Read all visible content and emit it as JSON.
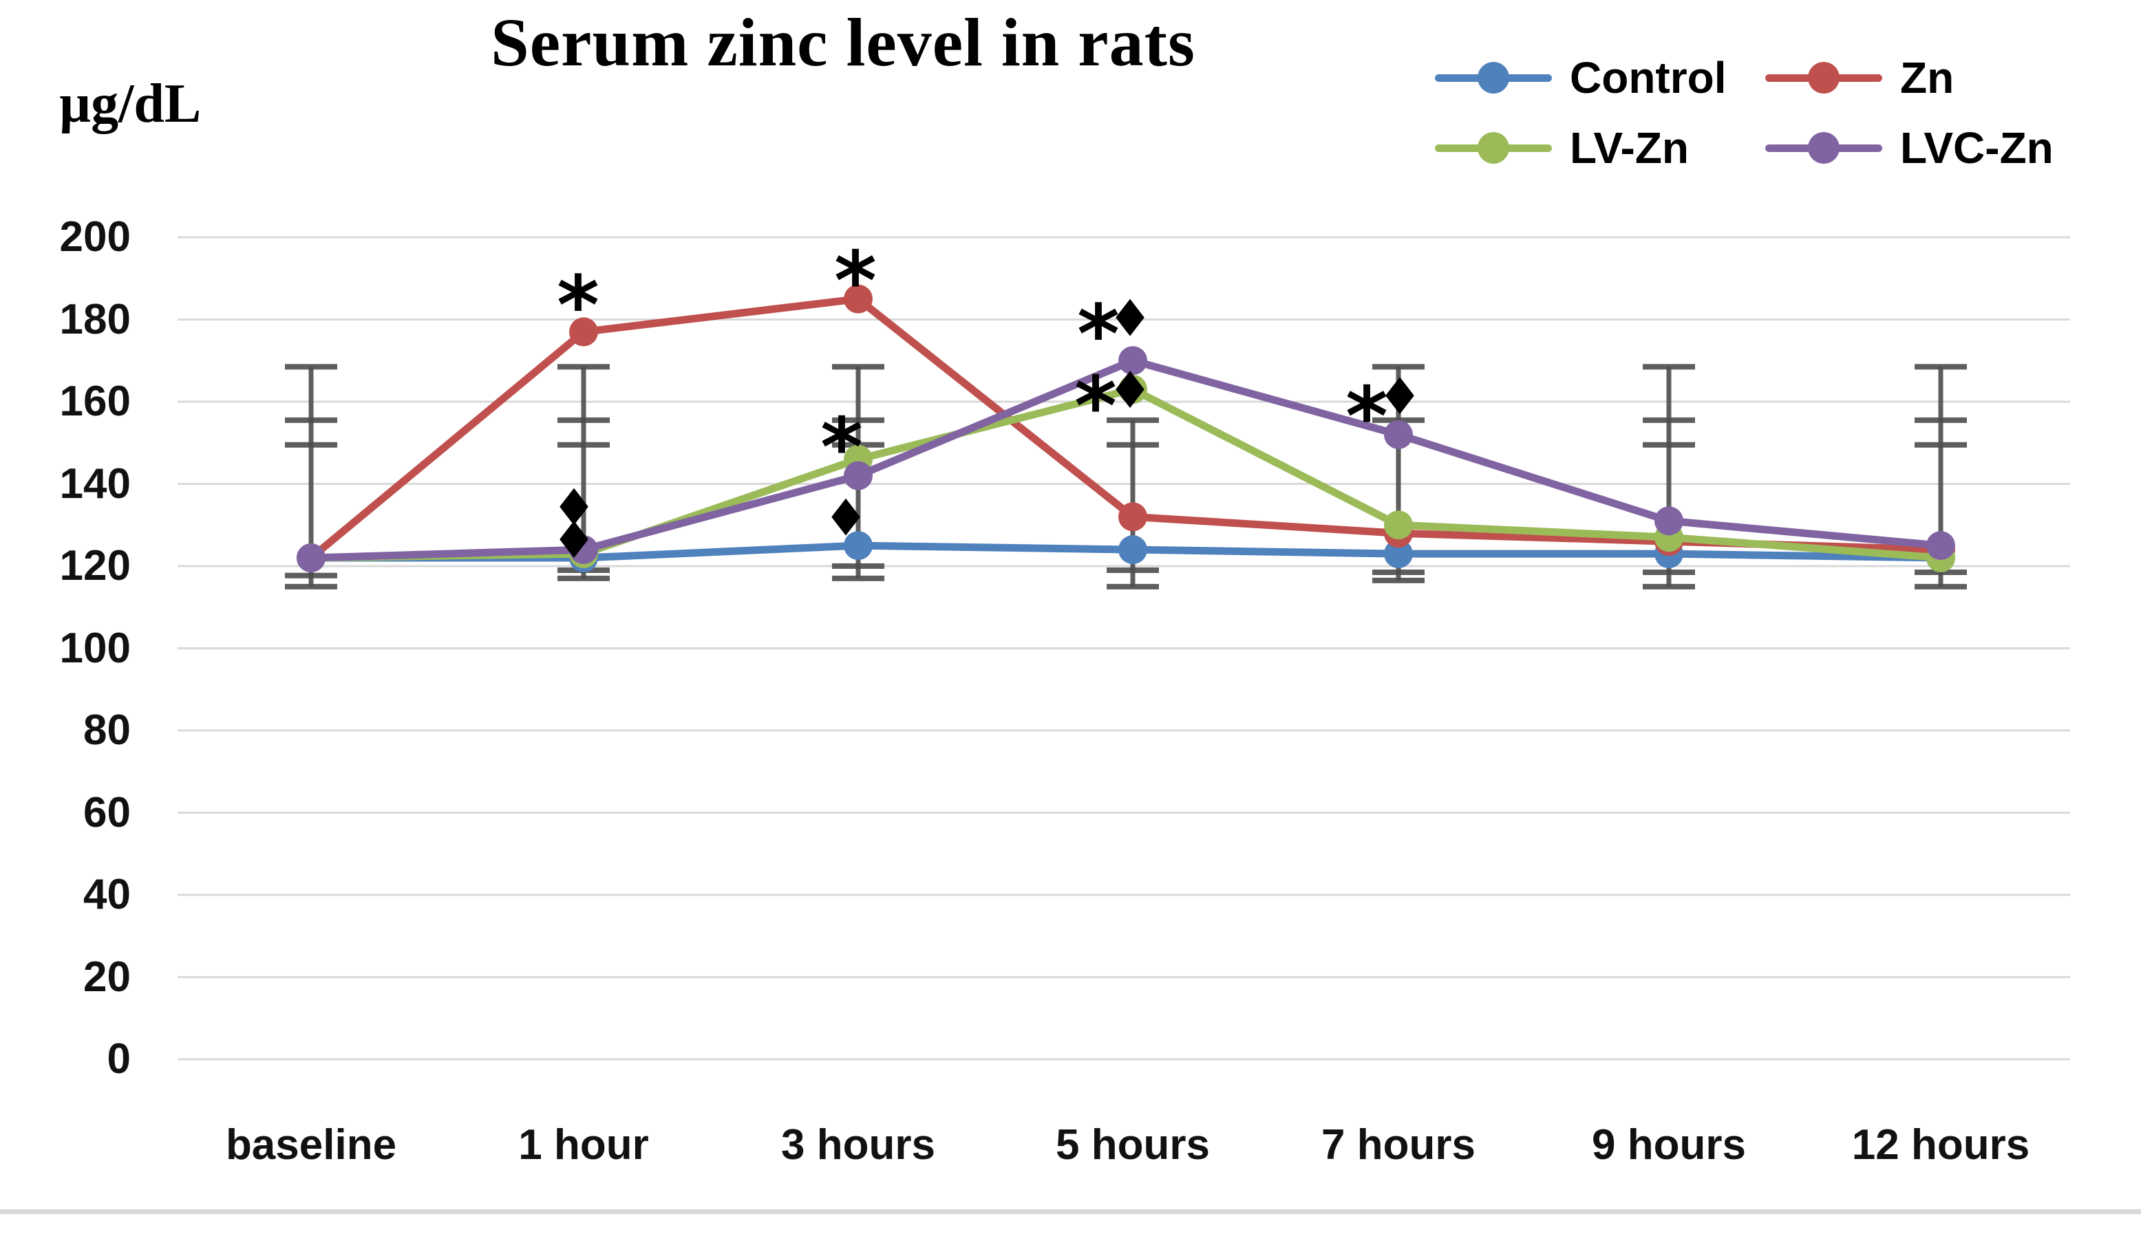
{
  "figure": {
    "title": "Serum zinc level in rats",
    "y_axis_unit": "µg/dL"
  },
  "chart_data": {
    "type": "line",
    "title": "Serum zinc level in rats",
    "ylabel": "µg/dL",
    "xlabel": "",
    "ylim": [
      0,
      200
    ],
    "ytick_step": 20,
    "yticks": [
      200,
      180,
      160,
      140,
      120,
      100,
      80,
      60,
      40,
      20,
      0
    ],
    "categories": [
      "baseline",
      "1 hour",
      "3 hours",
      "5 hours",
      "7 hours",
      "9 hours",
      "12 hours"
    ],
    "grid": true,
    "legend_position": "top-right",
    "gridline_color": "#d9d9d9",
    "error_bar_color": "#4d4d4d",
    "annotation_color": "#000000",
    "series": [
      {
        "name": "Control",
        "color": "#4F81BD",
        "marker": "circle",
        "values": [
          122,
          122,
          125,
          124,
          123,
          123,
          122
        ]
      },
      {
        "name": "Zn",
        "color": "#C0504D",
        "marker": "circle",
        "values": [
          122,
          177,
          185,
          132,
          128,
          126,
          124
        ]
      },
      {
        "name": "LV-Zn",
        "color": "#9BBB59",
        "marker": "circle",
        "values": [
          122,
          123,
          146,
          163,
          130,
          127,
          122
        ]
      },
      {
        "name": "LVC-Zn",
        "color": "#8064A2",
        "marker": "circle",
        "values": [
          122,
          124,
          142,
          170,
          152,
          131,
          125
        ]
      }
    ],
    "error_bar_caps_by_category": [
      [
        168.5,
        155.5,
        149.5,
        117.7,
        115.0
      ],
      [
        168.5,
        155.5,
        149.5,
        119.0,
        117.0
      ],
      [
        168.5,
        155.5,
        149.5,
        120.0,
        117.0
      ],
      [
        155.5,
        149.5,
        119.0,
        115.0
      ],
      [
        168.5,
        155.5,
        118.5,
        116.5
      ],
      [
        168.5,
        155.5,
        149.5,
        118.5,
        115.0
      ],
      [
        168.5,
        155.5,
        149.5,
        118.5,
        115.0
      ]
    ],
    "annotations": [
      {
        "category": 1,
        "symbol": "*",
        "value": 187.0,
        "dx": -8
      },
      {
        "category": 1,
        "symbol": "♦",
        "value": 134.0,
        "dx": -14
      },
      {
        "category": 1,
        "symbol": "♦",
        "value": 126.0,
        "dx": -14
      },
      {
        "category": 2,
        "symbol": "*",
        "value": 193.0,
        "dx": -4
      },
      {
        "category": 2,
        "symbol": "*",
        "value": 152.5,
        "dx": -24
      },
      {
        "category": 2,
        "symbol": "♦",
        "value": 131.5,
        "dx": -18
      },
      {
        "category": 3,
        "symbol": "*",
        "value": 180.0,
        "dx": -50
      },
      {
        "category": 3,
        "symbol": "♦",
        "value": 180.0,
        "dx": -4
      },
      {
        "category": 3,
        "symbol": "*",
        "value": 162.5,
        "dx": -54
      },
      {
        "category": 3,
        "symbol": "♦",
        "value": 162.5,
        "dx": -4
      },
      {
        "category": 4,
        "symbol": "*",
        "value": 160.0,
        "dx": -46
      },
      {
        "category": 4,
        "symbol": "♦",
        "value": 161.0,
        "dx": 2
      }
    ]
  }
}
